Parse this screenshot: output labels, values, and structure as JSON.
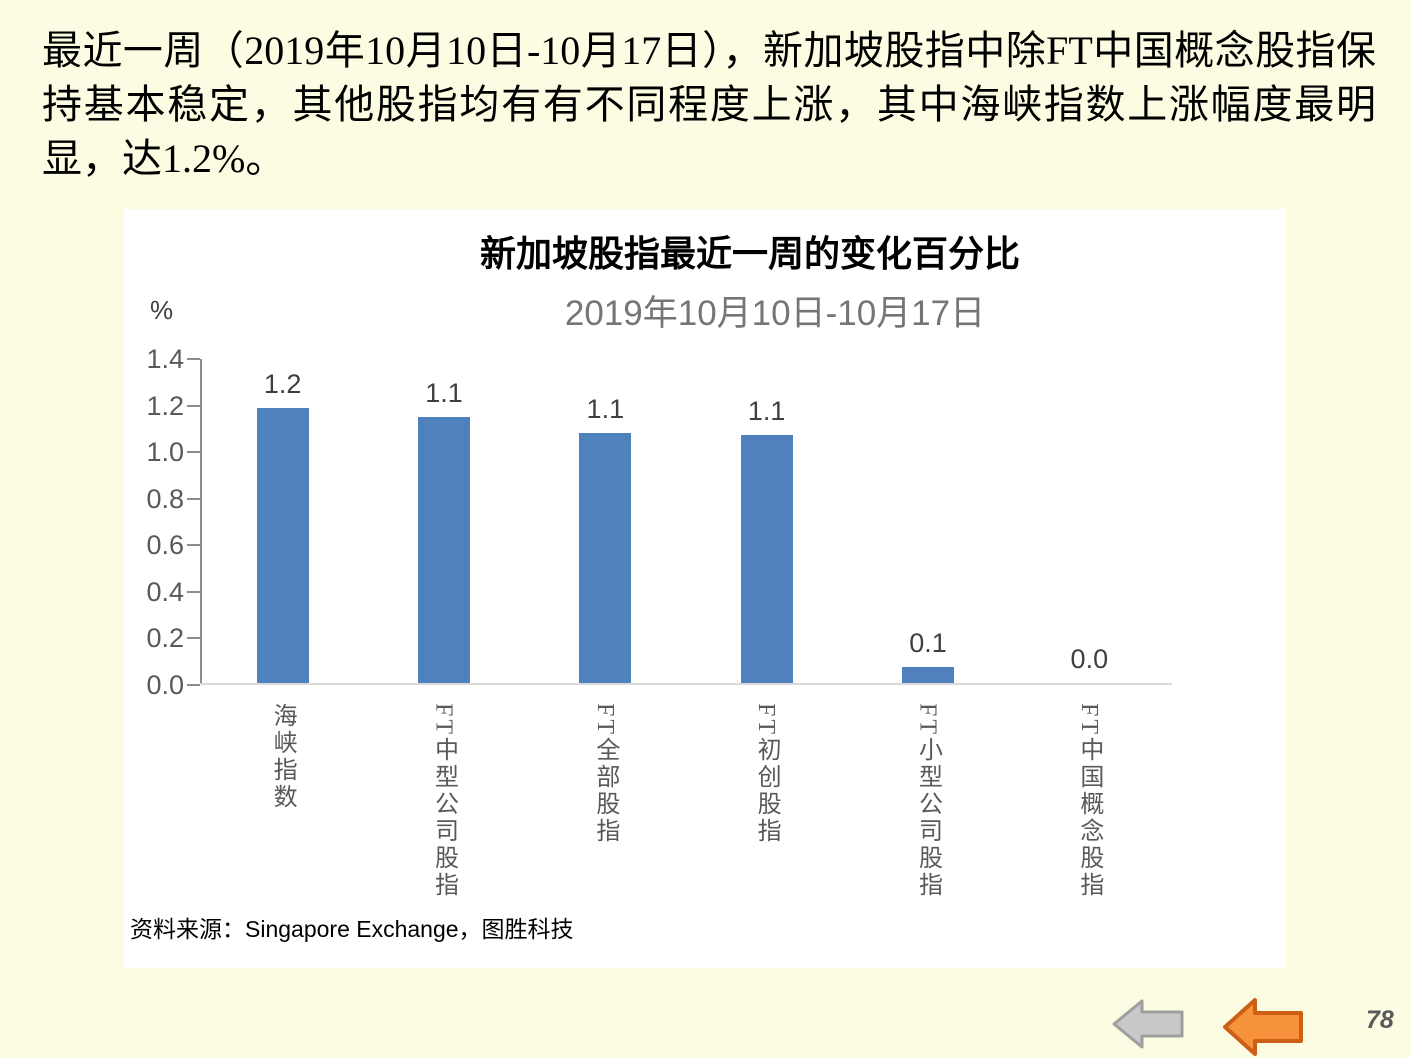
{
  "intro": {
    "text": "最近一周（2019年10月10日-10月17日），新加坡股指中除FT中国概念股指保持基本稳定，其他股指均有有不同程度上涨，其中海峡指数上涨幅度最明显，达1.2%。"
  },
  "chart_data": {
    "type": "bar",
    "title": "新加坡股指最近一周的变化百分比",
    "subtitle": "2019年10月10日-10月17日",
    "unit_label": "%",
    "categories": [
      "海峡指数",
      "FT中型公司股指",
      "FT全部股指",
      "FT初创股指",
      "FT小型公司股指",
      "FT中国概念股指"
    ],
    "values": [
      1.19,
      1.15,
      1.08,
      1.07,
      0.07,
      0.0
    ],
    "value_labels": [
      "1.2",
      "1.1",
      "1.1",
      "1.1",
      "0.1",
      "0.0"
    ],
    "ylim": [
      0,
      1.4
    ],
    "yticks": [
      "1.4",
      "1.2",
      "1.0",
      "0.8",
      "0.6",
      "0.4",
      "0.2",
      "0.0"
    ],
    "grid": false,
    "legend": "none",
    "bar_color": "#4F81BD",
    "source": "资料来源：Singapore Exchange，图胜科技"
  },
  "nav": {
    "gray_arrow_fill": "#C9C9C9",
    "gray_arrow_stroke": "#9E9E9E",
    "orange_arrow_fill": "#F6913C",
    "orange_arrow_stroke": "#CC5F15"
  },
  "page": {
    "number": "78"
  }
}
